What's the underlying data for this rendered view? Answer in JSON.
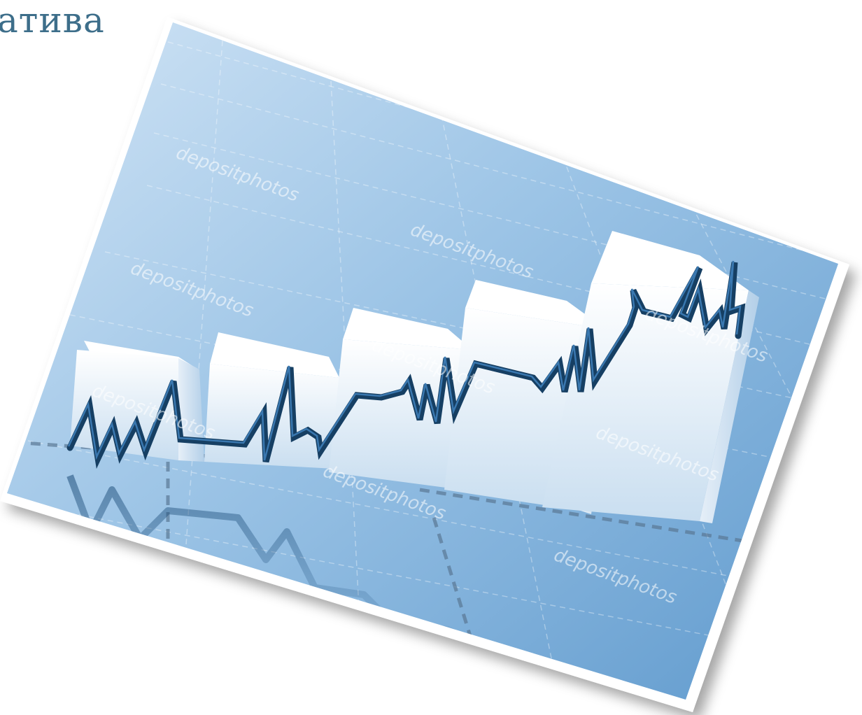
{
  "slide": {
    "title_fragment": "атива",
    "title_color": "#3d6e8a"
  },
  "photo": {
    "description_icon": "bar-chart-with-line-graph",
    "watermark": "depositphotos",
    "colors": {
      "background_light": "#b9d6ee",
      "background_dark": "#5b97cc",
      "bar_face": "#f4f8fc",
      "line": "#163f63"
    }
  }
}
